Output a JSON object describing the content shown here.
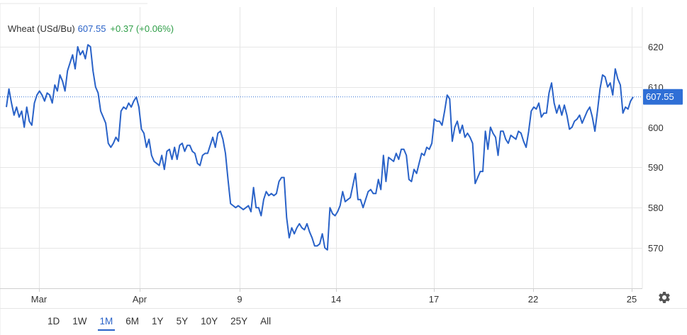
{
  "header": {
    "instrument": "Wheat (USd/Bu)",
    "price": "607.55",
    "change": "+0.37 (+0.06%)"
  },
  "range_buttons": [
    "1D",
    "1W",
    "1M",
    "6M",
    "1Y",
    "5Y",
    "10Y",
    "25Y",
    "All"
  ],
  "active_range": "1M",
  "colors": {
    "line": "#2962c8",
    "price_tag": "#2f6fd6",
    "change": "#2e9e47",
    "grid": "#e6e6e6"
  },
  "icons": {
    "settings": "gear-icon"
  },
  "chart_data": {
    "type": "line",
    "title": "",
    "xlabel": "",
    "ylabel": "",
    "ylim": [
      561,
      632
    ],
    "x_tick_labels": [
      "Mar",
      "Apr",
      "9",
      "14",
      "17",
      "22",
      "25"
    ],
    "y_ticks": [
      570,
      580,
      590,
      600,
      610,
      620
    ],
    "last_price": 607.55,
    "last_price_label": "607.55",
    "grid": true,
    "series": [
      {
        "name": "",
        "points": [
          [
            0,
            605
          ],
          [
            1,
            609.5
          ],
          [
            2,
            606
          ],
          [
            3,
            603
          ],
          [
            4,
            605
          ],
          [
            5,
            602.5
          ],
          [
            6,
            604
          ],
          [
            7,
            600
          ],
          [
            8,
            605
          ],
          [
            9,
            601.5
          ],
          [
            10,
            600.5
          ],
          [
            11,
            606
          ],
          [
            12,
            608
          ],
          [
            13,
            609
          ],
          [
            14,
            608
          ],
          [
            15,
            606.5
          ],
          [
            16,
            608.5
          ],
          [
            17,
            608
          ],
          [
            18,
            606
          ],
          [
            19,
            610.5
          ],
          [
            20,
            609
          ],
          [
            21,
            613
          ],
          [
            22,
            611.5
          ],
          [
            23,
            609
          ],
          [
            24,
            614
          ],
          [
            25,
            616
          ],
          [
            26,
            618
          ],
          [
            27,
            614.5
          ],
          [
            28,
            620
          ],
          [
            29,
            618
          ],
          [
            30,
            619
          ],
          [
            31,
            617
          ],
          [
            32,
            620.5
          ],
          [
            33,
            620
          ],
          [
            34,
            614
          ],
          [
            35,
            610
          ],
          [
            36,
            608.5
          ],
          [
            37,
            604
          ],
          [
            38,
            602.5
          ],
          [
            39,
            601
          ],
          [
            40,
            596
          ],
          [
            41,
            595
          ],
          [
            42,
            596
          ],
          [
            43,
            597.5
          ],
          [
            44,
            596.5
          ],
          [
            45,
            604
          ],
          [
            46,
            605
          ],
          [
            47,
            604.5
          ],
          [
            48,
            606
          ],
          [
            49,
            605
          ],
          [
            50,
            606.5
          ],
          [
            51,
            607.5
          ],
          [
            52,
            605
          ],
          [
            53,
            599.5
          ],
          [
            54,
            598.5
          ],
          [
            55,
            595
          ],
          [
            56,
            597
          ],
          [
            57,
            593
          ],
          [
            58,
            591.5
          ],
          [
            59,
            591
          ],
          [
            60,
            590.5
          ],
          [
            61,
            593
          ],
          [
            62,
            589.5
          ],
          [
            63,
            594
          ],
          [
            64,
            594.5
          ],
          [
            65,
            592
          ],
          [
            66,
            595
          ],
          [
            67,
            592
          ],
          [
            68,
            595.5
          ],
          [
            69,
            596
          ],
          [
            70,
            594
          ],
          [
            71,
            595.5
          ],
          [
            72,
            595.5
          ],
          [
            73,
            594
          ],
          [
            74,
            593.5
          ],
          [
            75,
            591
          ],
          [
            76,
            590.5
          ],
          [
            77,
            593
          ],
          [
            78,
            593.5
          ],
          [
            79,
            593.5
          ],
          [
            80,
            595.5
          ],
          [
            81,
            597.5
          ],
          [
            82,
            595
          ],
          [
            83,
            598.5
          ],
          [
            84,
            599
          ],
          [
            85,
            597
          ],
          [
            86,
            593.5
          ],
          [
            87,
            587
          ],
          [
            88,
            581
          ],
          [
            89,
            580.5
          ],
          [
            90,
            580
          ],
          [
            91,
            580.5
          ],
          [
            92,
            580
          ],
          [
            93,
            579.5
          ],
          [
            94,
            580
          ],
          [
            95,
            580.5
          ],
          [
            96,
            579
          ],
          [
            97,
            585
          ],
          [
            98,
            580
          ],
          [
            99,
            580
          ],
          [
            100,
            578
          ],
          [
            101,
            582
          ],
          [
            102,
            584
          ],
          [
            103,
            583
          ],
          [
            104,
            583.5
          ],
          [
            105,
            583
          ],
          [
            106,
            583.5
          ],
          [
            107,
            586.5
          ],
          [
            108,
            587.5
          ],
          [
            109,
            587.5
          ],
          [
            110,
            577.5
          ],
          [
            111,
            572.5
          ],
          [
            112,
            575
          ],
          [
            113,
            573.5
          ],
          [
            114,
            575
          ],
          [
            115,
            576
          ],
          [
            116,
            575
          ],
          [
            117,
            574.5
          ],
          [
            118,
            576
          ],
          [
            119,
            574
          ],
          [
            120,
            572.5
          ],
          [
            121,
            570.5
          ],
          [
            122,
            570.5
          ],
          [
            123,
            571
          ],
          [
            124,
            573.5
          ],
          [
            125,
            570
          ],
          [
            126,
            569.5
          ],
          [
            127,
            580
          ],
          [
            128,
            578.5
          ],
          [
            129,
            578
          ],
          [
            130,
            579
          ],
          [
            131,
            580.5
          ],
          [
            132,
            584
          ],
          [
            133,
            581.5
          ],
          [
            134,
            582
          ],
          [
            135,
            582.5
          ],
          [
            136,
            585.5
          ],
          [
            137,
            588.5
          ],
          [
            138,
            582
          ],
          [
            139,
            582
          ],
          [
            140,
            580
          ],
          [
            141,
            582
          ],
          [
            142,
            584
          ],
          [
            143,
            584.5
          ],
          [
            144,
            583.5
          ],
          [
            145,
            583.5
          ],
          [
            146,
            587
          ],
          [
            147,
            584.5
          ],
          [
            148,
            593
          ],
          [
            149,
            586.5
          ],
          [
            150,
            592.5
          ],
          [
            151,
            592
          ],
          [
            152,
            591.5
          ],
          [
            153,
            593.5
          ],
          [
            154,
            592
          ],
          [
            155,
            594.5
          ],
          [
            156,
            594.5
          ],
          [
            157,
            593
          ],
          [
            158,
            587
          ],
          [
            159,
            586.5
          ],
          [
            160,
            589.5
          ],
          [
            161,
            588.5
          ],
          [
            162,
            591
          ],
          [
            163,
            593.5
          ],
          [
            164,
            593
          ],
          [
            165,
            595
          ],
          [
            166,
            594.5
          ],
          [
            167,
            596
          ],
          [
            168,
            602
          ],
          [
            169,
            601.5
          ],
          [
            170,
            601.5
          ],
          [
            171,
            600.5
          ],
          [
            172,
            604
          ],
          [
            173,
            608
          ],
          [
            174,
            607
          ],
          [
            175,
            596.5
          ],
          [
            176,
            600
          ],
          [
            177,
            601.5
          ],
          [
            178,
            598.5
          ],
          [
            179,
            600.5
          ],
          [
            180,
            597.5
          ],
          [
            181,
            598.5
          ],
          [
            182,
            597.5
          ],
          [
            183,
            596
          ],
          [
            184,
            586
          ],
          [
            185,
            587.5
          ],
          [
            186,
            589
          ],
          [
            187,
            589
          ],
          [
            188,
            599
          ],
          [
            189,
            594.5
          ],
          [
            190,
            600
          ],
          [
            191,
            598.5
          ],
          [
            192,
            597.5
          ],
          [
            193,
            593
          ],
          [
            194,
            599
          ],
          [
            195,
            599
          ],
          [
            196,
            597
          ],
          [
            197,
            596
          ],
          [
            198,
            598
          ],
          [
            199,
            597.5
          ],
          [
            200,
            597
          ],
          [
            201,
            599
          ],
          [
            202,
            598.5
          ],
          [
            203,
            596.5
          ],
          [
            204,
            595
          ],
          [
            205,
            599
          ],
          [
            206,
            604
          ],
          [
            207,
            605
          ],
          [
            208,
            604.5
          ],
          [
            209,
            606
          ],
          [
            210,
            602.5
          ],
          [
            211,
            603.5
          ],
          [
            212,
            603.5
          ],
          [
            213,
            608.5
          ],
          [
            214,
            611
          ],
          [
            215,
            606
          ],
          [
            216,
            603.5
          ],
          [
            217,
            605.5
          ],
          [
            218,
            603
          ],
          [
            219,
            605.5
          ],
          [
            220,
            603
          ],
          [
            221,
            599.5
          ],
          [
            222,
            600
          ],
          [
            223,
            601.5
          ],
          [
            224,
            602
          ],
          [
            225,
            603
          ],
          [
            226,
            601
          ],
          [
            227,
            602.5
          ],
          [
            228,
            604
          ],
          [
            229,
            605
          ],
          [
            230,
            602.5
          ],
          [
            231,
            599
          ],
          [
            232,
            604
          ],
          [
            233,
            609.5
          ],
          [
            234,
            613
          ],
          [
            235,
            612.5
          ],
          [
            236,
            610
          ],
          [
            237,
            611
          ],
          [
            238,
            608
          ],
          [
            239,
            614.5
          ],
          [
            240,
            612
          ],
          [
            241,
            610.5
          ],
          [
            242,
            603.5
          ],
          [
            243,
            605
          ],
          [
            244,
            604.5
          ],
          [
            245,
            606.5
          ],
          [
            246,
            607.5
          ]
        ]
      }
    ]
  }
}
